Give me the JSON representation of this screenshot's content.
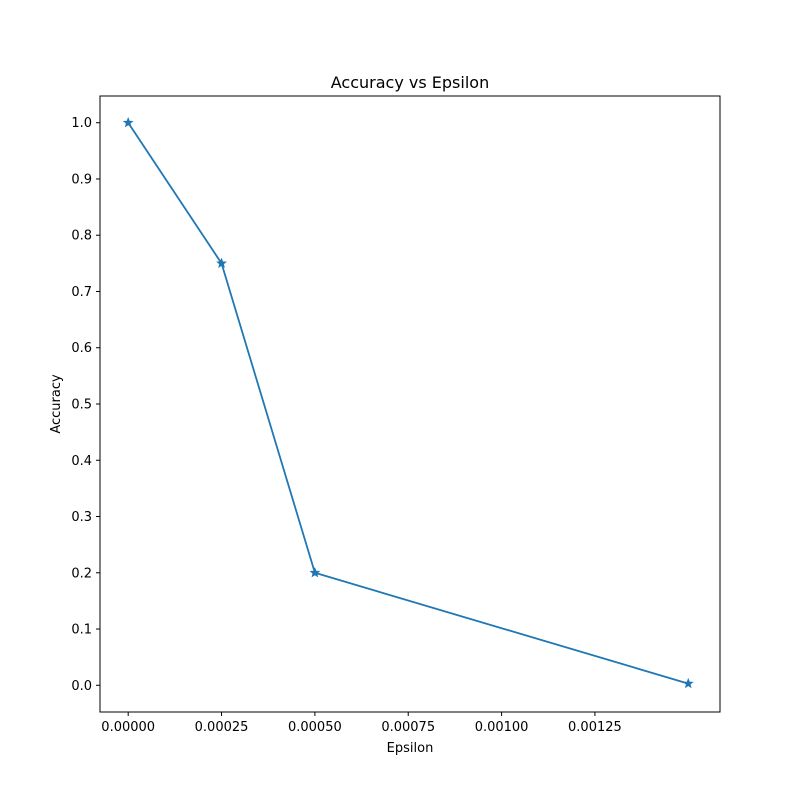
{
  "chart_data": {
    "type": "line",
    "title": "Accuracy vs Epsilon",
    "xlabel": "Epsilon",
    "ylabel": "Accuracy",
    "xlim": [
      -7.55e-05,
      0.001585
    ],
    "ylim": [
      -0.0475,
      1.0475
    ],
    "xticks": [
      0.0,
      0.00025,
      0.0005,
      0.00075,
      0.001,
      0.00125
    ],
    "xtick_labels": [
      "0.00000",
      "0.00025",
      "0.00050",
      "0.00075",
      "0.00100",
      "0.00125"
    ],
    "yticks": [
      0.0,
      0.1,
      0.2,
      0.3,
      0.4,
      0.5,
      0.6,
      0.7,
      0.8,
      0.9,
      1.0
    ],
    "ytick_labels": [
      "0.0",
      "0.1",
      "0.2",
      "0.3",
      "0.4",
      "0.5",
      "0.6",
      "0.7",
      "0.8",
      "0.9",
      "1.0"
    ],
    "grid": false,
    "series": [
      {
        "x": [
          0.0,
          0.00025,
          0.0005,
          0.0015
        ],
        "y": [
          1.0,
          0.75,
          0.2,
          0.003
        ],
        "color": "#1f77b4",
        "marker": "star"
      }
    ]
  }
}
